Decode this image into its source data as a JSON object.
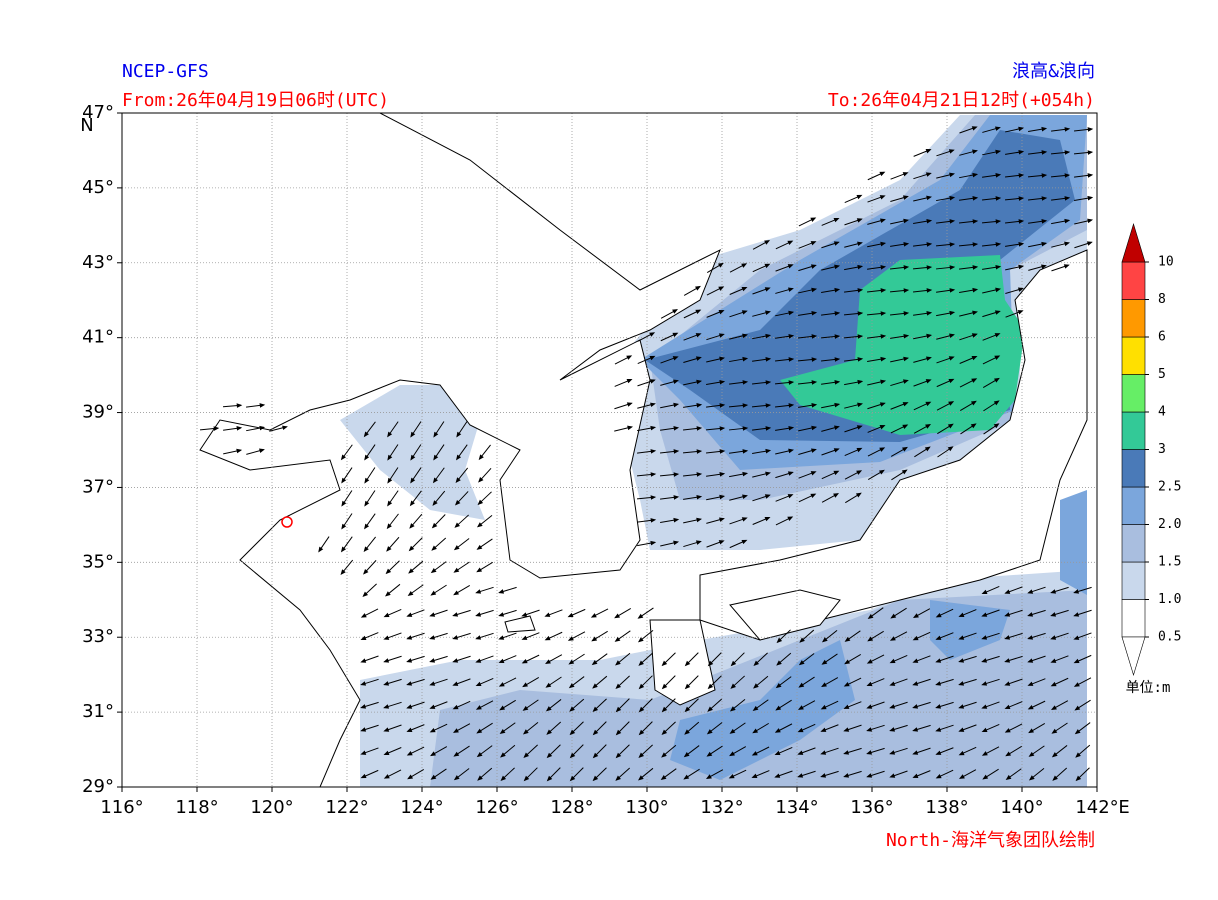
{
  "header": {
    "model": "NCEP-GFS",
    "product": "浪高&浪向",
    "from": "From:26年04月19日06时(UTC)",
    "to": "To:26年04月21日12时(+054h)"
  },
  "map": {
    "lon_range": [
      116,
      142
    ],
    "lat_range": [
      29,
      47
    ],
    "lon_ticks": [
      {
        "value": 116,
        "label": "116°"
      },
      {
        "value": 118,
        "label": "118°"
      },
      {
        "value": 120,
        "label": "120°"
      },
      {
        "value": 122,
        "label": "122°"
      },
      {
        "value": 124,
        "label": "124°"
      },
      {
        "value": 126,
        "label": "126°"
      },
      {
        "value": 128,
        "label": "128°"
      },
      {
        "value": 130,
        "label": "130°"
      },
      {
        "value": 132,
        "label": "132°"
      },
      {
        "value": 134,
        "label": "134°"
      },
      {
        "value": 136,
        "label": "136°"
      },
      {
        "value": 138,
        "label": "138°"
      },
      {
        "value": 140,
        "label": "140°"
      },
      {
        "value": 142,
        "label": "142°"
      }
    ],
    "lat_ticks": [
      {
        "value": 29,
        "label": "29°"
      },
      {
        "value": 31,
        "label": "31°"
      },
      {
        "value": 33,
        "label": "33°"
      },
      {
        "value": 35,
        "label": "35°"
      },
      {
        "value": 37,
        "label": "37°"
      },
      {
        "value": 39,
        "label": "39°"
      },
      {
        "value": 41,
        "label": "41°"
      },
      {
        "value": 43,
        "label": "43°"
      },
      {
        "value": 45,
        "label": "45°"
      },
      {
        "value": 47,
        "label": "47°"
      }
    ],
    "lon_suffix": "E",
    "lat_suffix": "N",
    "grid": true
  },
  "colorbar": {
    "levels": [
      0.5,
      {
        "value": 1,
        "label": "1.0"
      },
      1.5,
      {
        "value": 2,
        "label": "2.0"
      },
      2.5,
      3,
      4,
      5,
      6,
      8,
      10
    ],
    "colors": [
      "#ffffff",
      "#c9d8ec",
      "#a9bedf",
      "#7ba6dc",
      "#4a7ab8",
      "#33c997",
      "#66ee66",
      "#ffe000",
      "#ff9900",
      "#ff4444"
    ],
    "over_color": "#c00000",
    "unit": "单位:m"
  },
  "credit": "North-海洋气象团队绘制"
}
